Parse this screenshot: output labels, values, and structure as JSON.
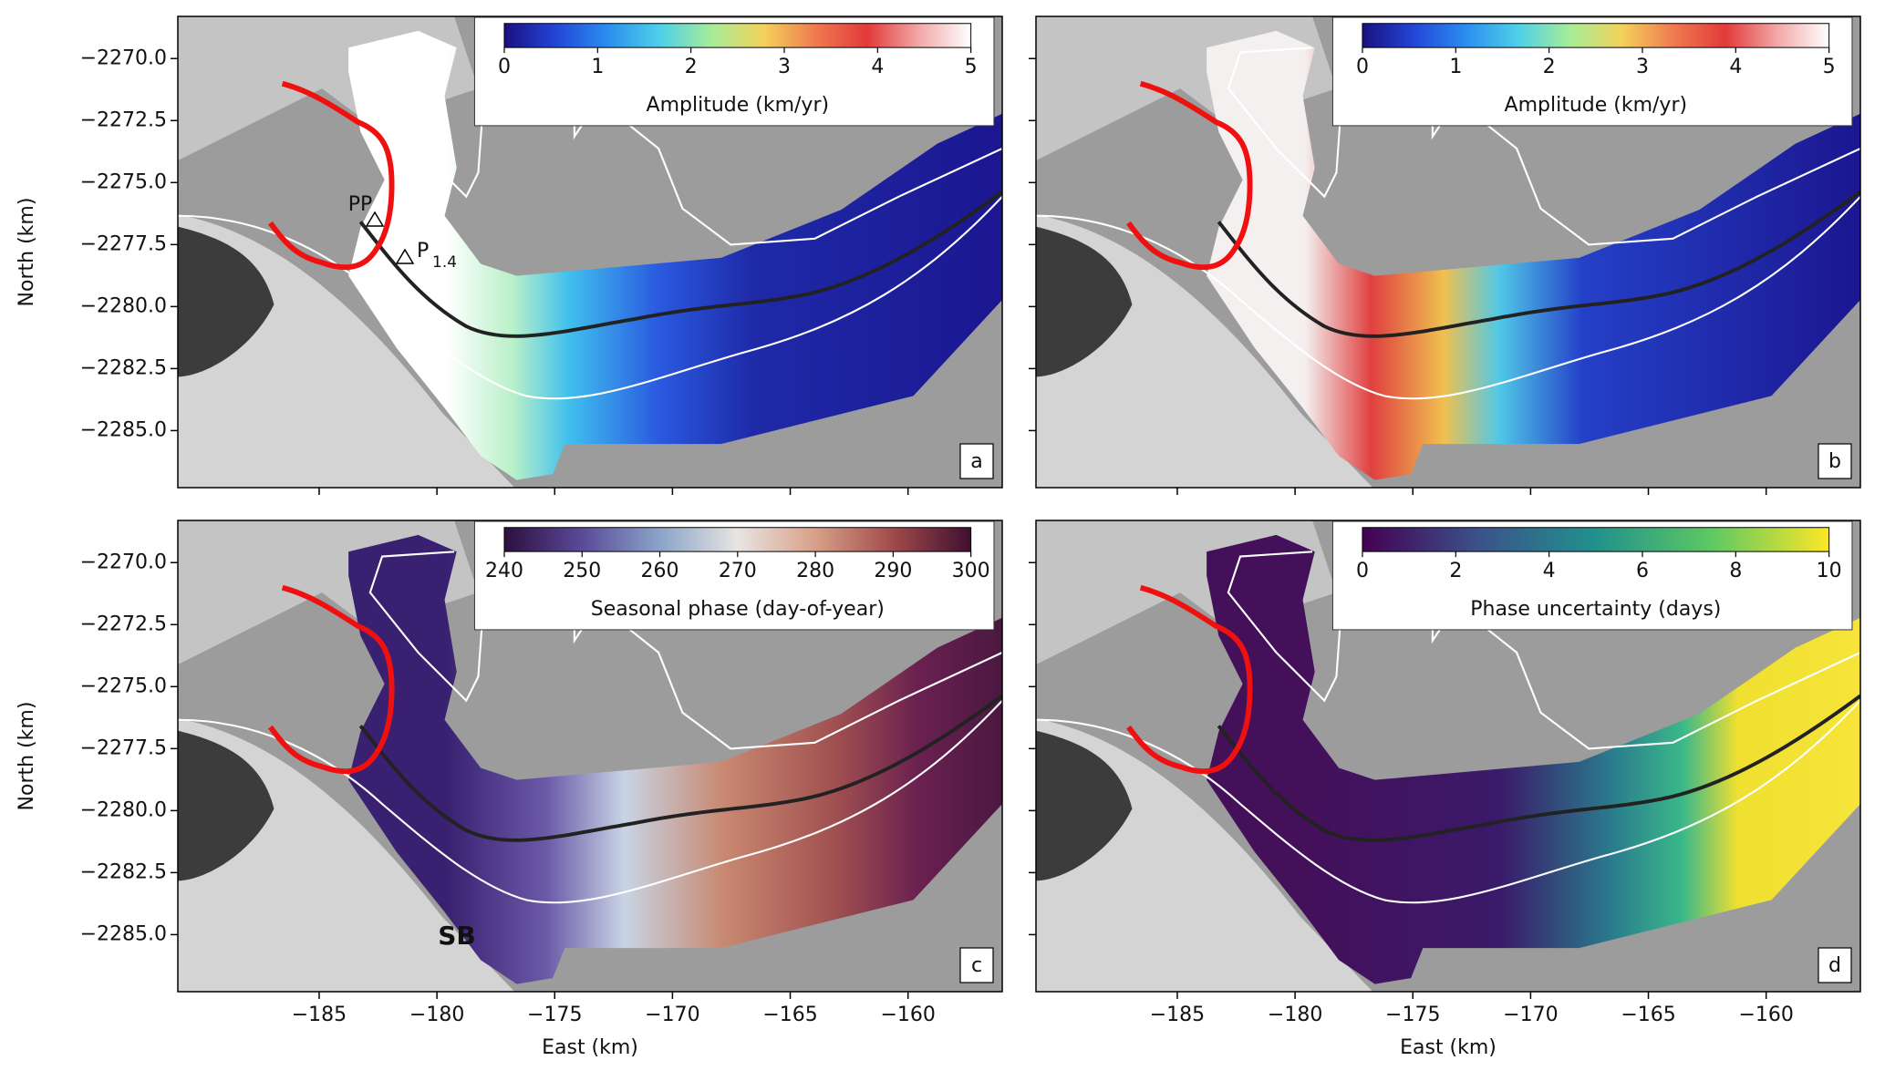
{
  "chart_data": [
    {
      "type": "map",
      "panel_label": "a",
      "xlim": [
        -191,
        -156
      ],
      "ylim": [
        -2287.3,
        -2268.3
      ],
      "xticks": [
        -185,
        -180,
        -175,
        -170,
        -165,
        -160
      ],
      "show_xtick_labels": false,
      "yticks": [
        {
          "value": -2270,
          "label": "−2270.0"
        },
        {
          "value": -2272.5,
          "label": "−2272.5"
        },
        {
          "value": -2275,
          "label": "−2275.0"
        },
        {
          "value": -2277.5,
          "label": "−2277.5"
        },
        {
          "value": -2280,
          "label": "−2280.0"
        },
        {
          "value": -2282.5,
          "label": "−2282.5"
        },
        {
          "value": -2285,
          "label": "−2285.0"
        }
      ],
      "ylabel": "North (km)",
      "colorbar": {
        "label": "Amplitude (km/yr)",
        "lim": [
          0,
          5
        ],
        "ticks": [
          0,
          1,
          2,
          3,
          4,
          5
        ],
        "colormap": [
          "#1a1080",
          "#2346d8",
          "#2b8ef0",
          "#4ed0e8",
          "#a6ec98",
          "#f2d25a",
          "#f07a50",
          "#e23a3a",
          "#f2a8a8",
          "#ffffff"
        ]
      },
      "annotations": [
        {
          "text": "PP"
        },
        {
          "text": "P",
          "subscript": "1.4"
        }
      ]
    },
    {
      "type": "map",
      "panel_label": "b",
      "xlim": [
        -191,
        -156
      ],
      "ylim": [
        -2287.3,
        -2268.3
      ],
      "xticks": [
        -185,
        -180,
        -175,
        -170,
        -165,
        -160
      ],
      "show_xtick_labels": false,
      "yticks": [
        -2270,
        -2272.5,
        -2275,
        -2277.5,
        -2280,
        -2282.5,
        -2285
      ],
      "show_ytick_labels": false,
      "colorbar": {
        "label": "Amplitude (km/yr)",
        "lim": [
          0,
          5
        ],
        "ticks": [
          0,
          1,
          2,
          3,
          4,
          5
        ],
        "colormap": [
          "#1a1080",
          "#2346d8",
          "#2b8ef0",
          "#4ed0e8",
          "#a6ec98",
          "#f2d25a",
          "#f07a50",
          "#e23a3a",
          "#f2a8a8",
          "#ffffff"
        ]
      }
    },
    {
      "type": "map",
      "panel_label": "c",
      "xlim": [
        -191,
        -156
      ],
      "ylim": [
        -2287.3,
        -2268.3
      ],
      "xticks": [
        {
          "value": -185,
          "label": "−185"
        },
        {
          "value": -180,
          "label": "−180"
        },
        {
          "value": -175,
          "label": "−175"
        },
        {
          "value": -170,
          "label": "−170"
        },
        {
          "value": -165,
          "label": "−165"
        },
        {
          "value": -160,
          "label": "−160"
        }
      ],
      "yticks": [
        {
          "value": -2270,
          "label": "−2270.0"
        },
        {
          "value": -2272.5,
          "label": "−2272.5"
        },
        {
          "value": -2275,
          "label": "−2275.0"
        },
        {
          "value": -2277.5,
          "label": "−2277.5"
        },
        {
          "value": -2280,
          "label": "−2280.0"
        },
        {
          "value": -2282.5,
          "label": "−2282.5"
        },
        {
          "value": -2285,
          "label": "−2285.0"
        }
      ],
      "xlabel": "East (km)",
      "ylabel": "North (km)",
      "colorbar": {
        "label": "Seasonal phase (day-of-year)",
        "lim": [
          240,
          300
        ],
        "ticks": [
          240,
          250,
          260,
          270,
          280,
          290,
          300
        ],
        "colormap": [
          "#2d0f3f",
          "#5a4a9a",
          "#8aa4c8",
          "#e8e4e2",
          "#d8a088",
          "#a04a4a",
          "#3f0f30"
        ]
      },
      "annotations": [
        {
          "text": "SB"
        }
      ]
    },
    {
      "type": "map",
      "panel_label": "d",
      "xlim": [
        -191,
        -156
      ],
      "ylim": [
        -2287.3,
        -2268.3
      ],
      "xticks": [
        {
          "value": -185,
          "label": "−185"
        },
        {
          "value": -180,
          "label": "−180"
        },
        {
          "value": -175,
          "label": "−175"
        },
        {
          "value": -170,
          "label": "−170"
        },
        {
          "value": -165,
          "label": "−165"
        },
        {
          "value": -160,
          "label": "−160"
        }
      ],
      "yticks": [
        -2270,
        -2272.5,
        -2275,
        -2277.5,
        -2280,
        -2282.5,
        -2285
      ],
      "show_ytick_labels": false,
      "xlabel": "East (km)",
      "colorbar": {
        "label": "Phase uncertainty (days)",
        "lim": [
          0,
          10
        ],
        "ticks": [
          0,
          2,
          4,
          6,
          8,
          10
        ],
        "colormap": [
          "#440154",
          "#3b528b",
          "#21918c",
          "#5ec962",
          "#fde725"
        ]
      }
    }
  ]
}
